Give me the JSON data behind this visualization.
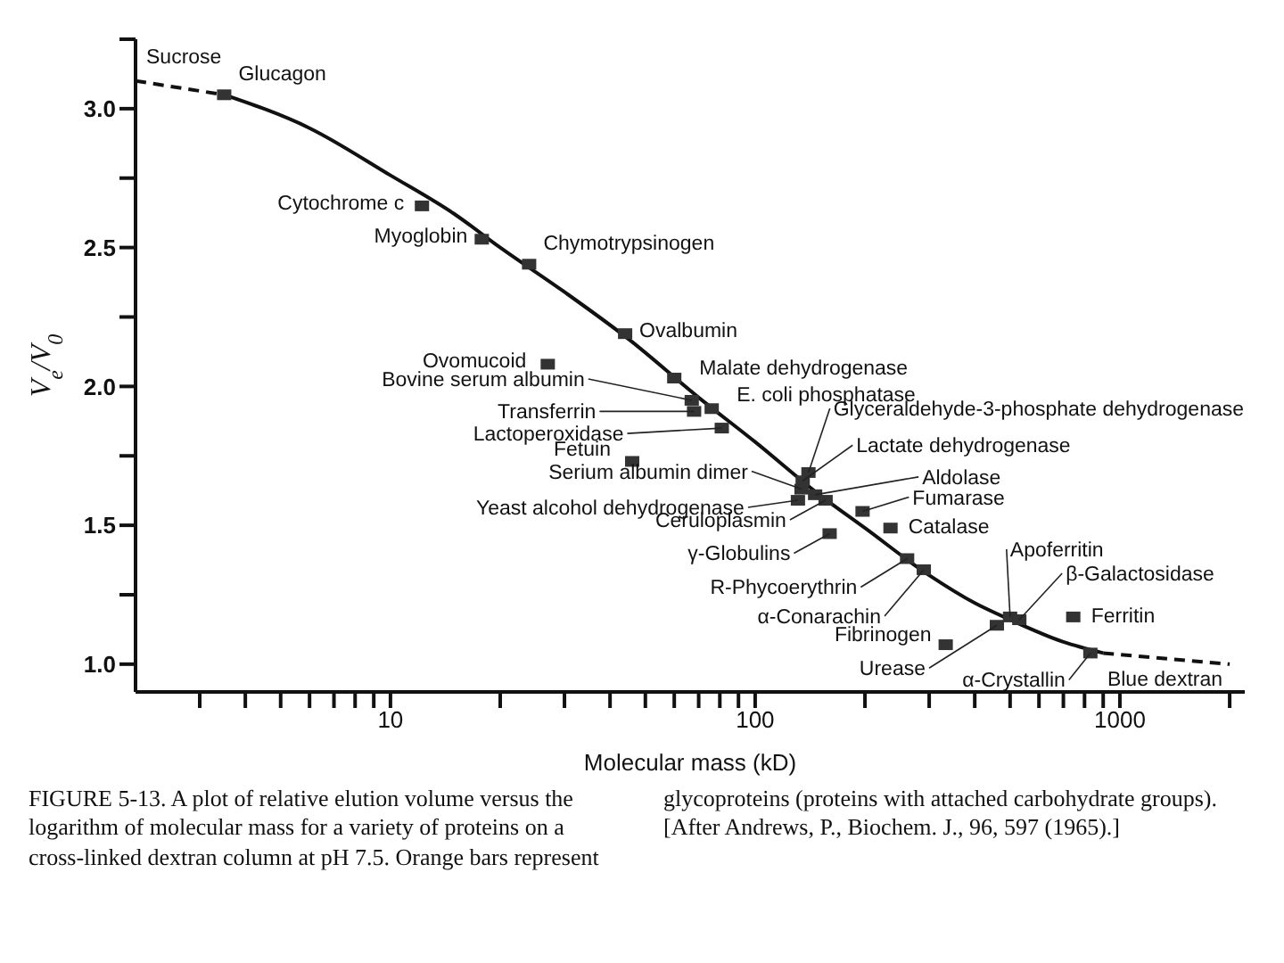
{
  "chart_data": {
    "type": "scatter",
    "xlabel": "Molecular mass (kD)",
    "ylabel": "V$_{e}$/V$_{0}$",
    "log": "x",
    "xlim": [
      2,
      2200
    ],
    "ylim": [
      0.9,
      3.25
    ],
    "xticks": [
      {
        "value": 3,
        "label": null
      },
      {
        "value": 4,
        "label": null
      },
      {
        "value": 5,
        "label": null
      },
      {
        "value": 6,
        "label": null
      },
      {
        "value": 7,
        "label": null
      },
      {
        "value": 8,
        "label": null
      },
      {
        "value": 9,
        "label": null
      },
      10,
      {
        "value": 20,
        "label": null
      },
      {
        "value": 30,
        "label": null
      },
      {
        "value": 40,
        "label": null
      },
      {
        "value": 50,
        "label": null
      },
      {
        "value": 60,
        "label": null
      },
      {
        "value": 70,
        "label": null
      },
      {
        "value": 80,
        "label": null
      },
      {
        "value": 90,
        "label": null
      },
      100,
      {
        "value": 200,
        "label": null
      },
      {
        "value": 300,
        "label": null
      },
      {
        "value": 400,
        "label": null
      },
      {
        "value": 500,
        "label": null
      },
      {
        "value": 600,
        "label": null
      },
      {
        "value": 700,
        "label": null
      },
      {
        "value": 800,
        "label": null
      },
      {
        "value": 900,
        "label": null
      },
      1000,
      {
        "value": 2000,
        "label": null
      }
    ],
    "yticks": [
      {
        "value": 1,
        "label": "1.0"
      },
      {
        "value": 1.25,
        "label": null
      },
      {
        "value": 1.5,
        "label": "1.5"
      },
      {
        "value": 1.75,
        "label": null
      },
      {
        "value": 2,
        "label": "2.0"
      },
      {
        "value": 2.25,
        "label": null
      },
      {
        "value": 2.5,
        "label": "2.5"
      },
      {
        "value": 2.75,
        "label": null
      },
      {
        "value": 3,
        "label": "3.0"
      },
      {
        "value": 3.25,
        "label": null
      }
    ],
    "series": [
      {
        "type": "line",
        "color": "#111111",
        "marker": "none",
        "line_style": "dashed",
        "x": [
          2,
          3.5
        ],
        "values": [
          3.1,
          3.05
        ]
      },
      {
        "type": "line",
        "color": "#111111",
        "marker": "none",
        "line_style": "solid",
        "x": [
          3.5,
          6,
          10,
          15,
          20,
          30,
          45,
          70,
          100,
          150,
          200,
          300,
          400,
          500,
          700,
          900
        ],
        "values": [
          3.05,
          2.93,
          2.76,
          2.62,
          2.5,
          2.34,
          2.17,
          1.96,
          1.8,
          1.61,
          1.49,
          1.32,
          1.22,
          1.16,
          1.08,
          1.04
        ]
      },
      {
        "type": "line",
        "color": "#111111",
        "marker": "none",
        "line_style": "dashed",
        "x": [
          900,
          2000
        ],
        "values": [
          1.04,
          1.0
        ]
      },
      {
        "color": "#333333",
        "marker": "square",
        "x": [
          3.5,
          12.2,
          17.8,
          24,
          44,
          27,
          60,
          67,
          68,
          76,
          81,
          46,
          140,
          135,
          134,
          146,
          131,
          156,
          197,
          235,
          160,
          261,
          290,
          500,
          530,
          460,
          745,
          333,
          830
        ],
        "values": [
          3.05,
          2.65,
          2.53,
          2.44,
          2.19,
          2.08,
          2.03,
          1.95,
          1.91,
          1.92,
          1.85,
          1.73,
          1.69,
          1.66,
          1.63,
          1.61,
          1.59,
          1.59,
          1.55,
          1.49,
          1.47,
          1.38,
          1.34,
          1.17,
          1.16,
          1.14,
          1.17,
          1.07,
          1.04
        ]
      }
    ],
    "annotations": [
      {
        "text": "Glucagon",
        "x": 3.5,
        "y": 3.05
      },
      {
        "text": "Cytochrome c",
        "x": 12.2,
        "y": 2.65
      },
      {
        "text": "Myoglobin",
        "x": 17.8,
        "y": 2.53
      },
      {
        "text": "Chymotrypsinogen",
        "x": 24,
        "y": 2.44
      },
      {
        "text": "Ovalbumin",
        "x": 44,
        "y": 2.19
      },
      {
        "text": "Ovomucoid",
        "x": 27,
        "y": 2.08
      },
      {
        "text": "Malate dehydrogenase",
        "x": 60,
        "y": 2.03
      },
      {
        "text": "Bovine serum albumin",
        "x": 67,
        "y": 1.95
      },
      {
        "text": "Transferrin",
        "x": 68,
        "y": 1.91
      },
      {
        "text": "E. coli phosphatase",
        "x": 76,
        "y": 1.92
      },
      {
        "text": "Lactoperoxidase",
        "x": 81,
        "y": 1.85
      },
      {
        "text": "Fetuin",
        "x": 46,
        "y": 1.73
      },
      {
        "text": "Glyceraldehyde-3-phosphate dehydrogenase",
        "x": 140,
        "y": 1.69
      },
      {
        "text": "Lactate dehydrogenase",
        "x": 135,
        "y": 1.66
      },
      {
        "text": "Serium albumin dimer",
        "x": 134,
        "y": 1.63
      },
      {
        "text": "Aldolase",
        "x": 146,
        "y": 1.61
      },
      {
        "text": "Yeast alcohol dehydrogenase",
        "x": 131,
        "y": 1.59
      },
      {
        "text": "Ceruloplasmin",
        "x": 156,
        "y": 1.59
      },
      {
        "text": "Fumarase",
        "x": 197,
        "y": 1.55
      },
      {
        "text": "Catalase",
        "x": 235,
        "y": 1.49
      },
      {
        "text": "γ-Globulins",
        "x": 160,
        "y": 1.47
      },
      {
        "text": "R-Phycoerythrin",
        "x": 261,
        "y": 1.38
      },
      {
        "text": "α-Conarachin",
        "x": 290,
        "y": 1.34
      },
      {
        "text": "Apoferritin",
        "x": 500,
        "y": 1.17
      },
      {
        "text": "β-Galactosidase",
        "x": 530,
        "y": 1.16
      },
      {
        "text": "Urease",
        "x": 460,
        "y": 1.14
      },
      {
        "text": "Ferritin",
        "x": 745,
        "y": 1.17
      },
      {
        "text": "Fibrinogen",
        "x": 333,
        "y": 1.07
      },
      {
        "text": "α-Crystallin",
        "x": 830,
        "y": 1.04
      },
      {
        "text": "Sucrose",
        "x": 2,
        "y": 3.1
      },
      {
        "text": "Blue dextran",
        "x": 2000,
        "y": 1.0
      },
      "FIGURE 5-13. A plot of relative elution volume versus the logarithm of molecular mass for a variety of proteins on a cross-linked dextran column at pH 7.5. Orange bars represent glycoproteins (proteins with attached carbohydrate groups). [After Andrews, P., Biochem. J., 96, 597 (1965).]"
    ]
  }
}
